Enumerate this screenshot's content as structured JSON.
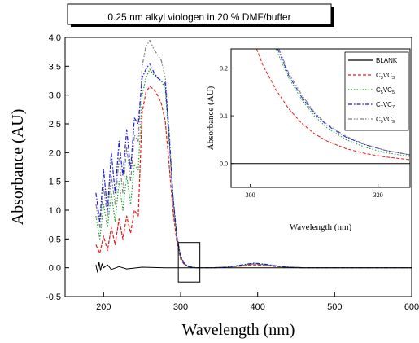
{
  "chart_data": [
    {
      "type": "line",
      "title": "0.25 nm alkyl viologen in 20 % DMF/buffer",
      "xlabel": "Wavelength (nm)",
      "ylabel": "Absorbance (AU)",
      "xlim": [
        150,
        600
      ],
      "ylim": [
        -0.5,
        4.0
      ],
      "xticks": [
        "200",
        "300",
        "400",
        "500",
        "600"
      ],
      "yticks": [
        "-0.5",
        "0.0",
        "0.5",
        "1.0",
        "1.5",
        "2.0",
        "2.5",
        "3.0",
        "3.5",
        "4.0"
      ],
      "grid": false,
      "colors": {
        "blank": "#000000",
        "c3": "#e8191b",
        "c5": "#1a9e2a",
        "c7": "#1b1bd8",
        "c9": "#808080"
      },
      "series": [
        {
          "key": "blank",
          "name": "BLANK",
          "x": [
            190,
            192,
            194,
            196,
            198,
            200,
            205,
            210,
            220,
            230,
            250,
            280,
            300,
            350,
            400,
            450,
            500,
            550,
            600
          ],
          "y": [
            0.05,
            -0.08,
            0.1,
            -0.05,
            0.07,
            0.0,
            0.05,
            -0.03,
            0.02,
            -0.02,
            0.01,
            0.0,
            0.0,
            0.0,
            0.0,
            0.0,
            0.0,
            0.0,
            0.0
          ]
        },
        {
          "key": "c3",
          "name": "C3VC3",
          "x": [
            190,
            195,
            200,
            205,
            210,
            215,
            220,
            225,
            230,
            235,
            240,
            245,
            250,
            255,
            260,
            265,
            270,
            275,
            280,
            285,
            290,
            295,
            300,
            305,
            310,
            320,
            340,
            360,
            380,
            395,
            410,
            425,
            440,
            460,
            500,
            550,
            600
          ],
          "y": [
            0.4,
            0.25,
            0.55,
            0.3,
            0.7,
            0.4,
            0.85,
            0.5,
            0.9,
            0.6,
            1.0,
            0.9,
            2.7,
            3.05,
            3.15,
            3.1,
            3.0,
            2.85,
            2.55,
            1.8,
            1.0,
            0.45,
            0.15,
            0.05,
            0.02,
            0.0,
            0.0,
            0.01,
            0.03,
            0.05,
            0.04,
            0.02,
            0.01,
            0.0,
            0.0,
            0.0,
            0.0
          ]
        },
        {
          "key": "c5",
          "name": "C5VC5",
          "x": [
            190,
            195,
            200,
            205,
            210,
            215,
            220,
            225,
            230,
            235,
            240,
            245,
            250,
            255,
            260,
            265,
            270,
            275,
            280,
            285,
            290,
            295,
            300,
            305,
            310,
            320,
            340,
            360,
            380,
            395,
            410,
            425,
            440,
            460,
            500,
            550,
            600
          ],
          "y": [
            0.9,
            0.5,
            1.1,
            0.7,
            1.3,
            0.8,
            1.5,
            1.0,
            1.6,
            1.1,
            1.8,
            1.7,
            3.0,
            3.3,
            3.45,
            3.35,
            3.3,
            3.25,
            3.1,
            2.2,
            1.2,
            0.5,
            0.18,
            0.06,
            0.02,
            0.0,
            0.0,
            0.01,
            0.04,
            0.06,
            0.05,
            0.03,
            0.01,
            0.0,
            0.0,
            0.0,
            0.0
          ]
        },
        {
          "key": "c7",
          "name": "C7VC7",
          "x": [
            190,
            195,
            200,
            205,
            210,
            215,
            220,
            225,
            230,
            235,
            240,
            245,
            250,
            255,
            260,
            265,
            270,
            275,
            280,
            285,
            290,
            295,
            300,
            305,
            310,
            320,
            340,
            360,
            380,
            395,
            410,
            425,
            440,
            460,
            500,
            550,
            600
          ],
          "y": [
            1.3,
            0.8,
            1.7,
            1.0,
            2.0,
            1.3,
            2.2,
            1.6,
            2.4,
            1.7,
            2.6,
            2.5,
            3.3,
            3.45,
            3.55,
            3.4,
            3.3,
            3.25,
            3.2,
            2.3,
            1.25,
            0.55,
            0.2,
            0.07,
            0.02,
            0.0,
            0.0,
            0.01,
            0.05,
            0.08,
            0.06,
            0.03,
            0.01,
            0.0,
            0.0,
            0.0,
            0.0
          ]
        },
        {
          "key": "c9",
          "name": "C9VC9",
          "x": [
            190,
            195,
            200,
            205,
            210,
            215,
            220,
            225,
            230,
            235,
            240,
            245,
            250,
            255,
            260,
            265,
            270,
            275,
            280,
            285,
            290,
            295,
            300,
            305,
            310,
            320,
            340,
            360,
            380,
            395,
            410,
            425,
            440,
            460,
            500,
            550,
            600
          ],
          "y": [
            1.1,
            0.7,
            1.4,
            0.9,
            1.6,
            1.1,
            1.9,
            1.3,
            2.1,
            1.5,
            2.3,
            2.2,
            3.5,
            3.85,
            3.95,
            3.8,
            3.7,
            3.6,
            3.3,
            2.4,
            1.3,
            0.55,
            0.2,
            0.07,
            0.02,
            0.0,
            0.0,
            0.01,
            0.04,
            0.07,
            0.05,
            0.03,
            0.01,
            0.0,
            0.0,
            0.0,
            0.0
          ]
        }
      ]
    },
    {
      "type": "line",
      "title": "",
      "xlabel": "Wavelength (nm)",
      "ylabel": "Absorbance (AU)",
      "xlim": [
        297,
        325
      ],
      "ylim": [
        -0.05,
        0.24
      ],
      "xticks": [
        "300",
        "320"
      ],
      "yticks": [
        "0.0",
        "0.1",
        "0.2"
      ],
      "legend_position": "top-right",
      "legend_entries": [
        {
          "key": "blank",
          "base": "BLANK",
          "sub1": "",
          "mid": "",
          "sub2": "",
          "dash": "",
          "width": 1.3
        },
        {
          "key": "c3",
          "base": "C",
          "sub1": "3",
          "mid": "VC",
          "sub2": "3",
          "dash": "4,2",
          "width": 1.3
        },
        {
          "key": "c5",
          "base": "C",
          "sub1": "5",
          "mid": "VC",
          "sub2": "5",
          "dash": "1.5,2",
          "width": 1.3
        },
        {
          "key": "c7",
          "base": "C",
          "sub1": "7",
          "mid": "VC",
          "sub2": "7",
          "dash": "5,2,1.5,2",
          "width": 1.3
        },
        {
          "key": "c9",
          "base": "C",
          "sub1": "9",
          "mid": "VC",
          "sub2": "9",
          "dash": "5,2,1.5,2,1.5,2",
          "width": 1.3
        }
      ],
      "series": [
        {
          "key": "blank",
          "name": "BLANK",
          "x": [
            297,
            325
          ],
          "y": [
            0.0,
            0.0
          ]
        },
        {
          "key": "c3",
          "name": "C3VC3",
          "x": [
            301,
            302,
            304,
            306,
            308,
            310,
            312,
            315,
            318,
            321,
            325
          ],
          "y": [
            0.24,
            0.205,
            0.155,
            0.115,
            0.085,
            0.063,
            0.047,
            0.031,
            0.021,
            0.014,
            0.008
          ]
        },
        {
          "key": "c5",
          "name": "C5VC5",
          "x": [
            304,
            306,
            308,
            310,
            312,
            315,
            318,
            321,
            325
          ],
          "y": [
            0.24,
            0.18,
            0.135,
            0.1,
            0.075,
            0.05,
            0.034,
            0.023,
            0.015
          ]
        },
        {
          "key": "c7",
          "name": "C7VC7",
          "x": [
            304.3,
            306,
            308,
            310,
            312,
            315,
            318,
            321,
            325
          ],
          "y": [
            0.24,
            0.185,
            0.14,
            0.105,
            0.08,
            0.055,
            0.039,
            0.028,
            0.018
          ]
        },
        {
          "key": "c9",
          "name": "C9VC9",
          "x": [
            304.5,
            306,
            308,
            310,
            312,
            315,
            318,
            321,
            325
          ],
          "y": [
            0.24,
            0.19,
            0.145,
            0.108,
            0.082,
            0.057,
            0.04,
            0.028,
            0.018
          ]
        }
      ]
    }
  ]
}
